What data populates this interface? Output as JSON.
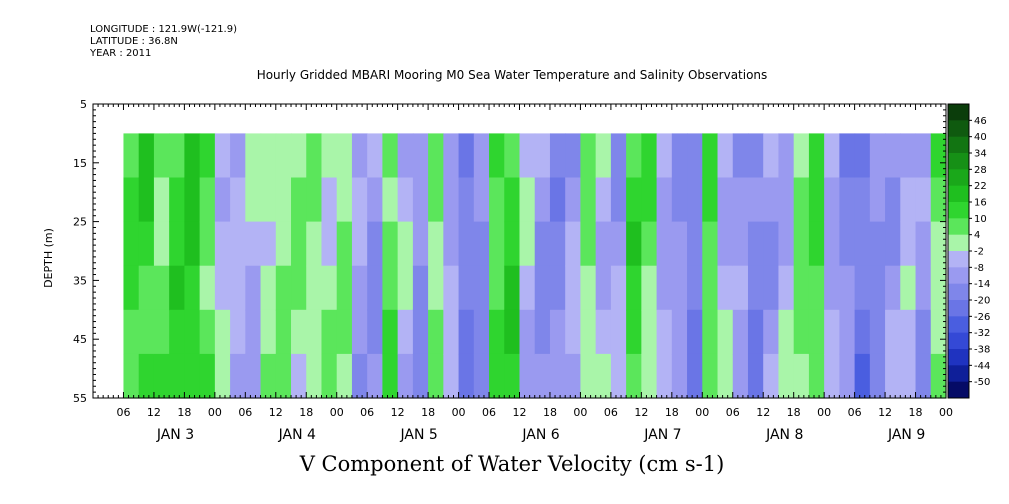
{
  "header": {
    "longitude": "LONGITUDE : 121.9W(-121.9)",
    "latitude": "LATITUDE : 36.8N",
    "year": "YEAR : 2011",
    "title": "Hourly Gridded MBARI Mooring M0 Sea Water Temperature and Salinity Observations",
    "variable": "V Component of Water Velocity (cm s-1)"
  },
  "chart_data": {
    "type": "heatmap",
    "title": "Hourly Gridded MBARI Mooring M0 Sea Water Temperature and Salinity Observations",
    "xlabel": "",
    "ylabel": "DEPTH (m)",
    "variable_label": "V Component of Water Velocity (cm s-1)",
    "y_axis": {
      "range": [
        5,
        55
      ],
      "inverted": true,
      "ticks": [
        5,
        15,
        25,
        35,
        45,
        55
      ]
    },
    "x_axis": {
      "range_hours": [
        0,
        168
      ],
      "hour_ticks": [
        "06",
        "12",
        "18",
        "00",
        "06",
        "12",
        "18",
        "00",
        "06",
        "12",
        "18",
        "00",
        "06",
        "12",
        "18",
        "00",
        "06",
        "12",
        "18",
        "00",
        "06",
        "12",
        "18",
        "00",
        "06",
        "12",
        "18",
        "00"
      ],
      "day_labels": [
        "JAN  3",
        "JAN  4",
        "JAN  5",
        "JAN  6",
        "JAN  7",
        "JAN  8",
        "JAN  9"
      ]
    },
    "data_extent": {
      "depth_min": 10,
      "depth_max": 55,
      "start": "JAN 3 06:00",
      "end": "JAN 9 ~02:00"
    },
    "colorbar": {
      "levels": [
        48,
        46,
        40,
        34,
        28,
        22,
        16,
        10,
        4,
        -2,
        -8,
        -14,
        -20,
        -26,
        -32,
        -38,
        -44,
        -50
      ],
      "labels": [
        "46",
        "40",
        "34",
        "28",
        "22",
        "16",
        "10",
        "4",
        "-2",
        "-8",
        "-14",
        "-20",
        "-26",
        "-32",
        "-38",
        "-44",
        "-50"
      ],
      "colors": [
        "#0b3d0b",
        "#0f5a0f",
        "#127512",
        "#169016",
        "#1aa81a",
        "#1fbf1f",
        "#2fd52f",
        "#5be65b",
        "#a9f5a9",
        "#b3b3f5",
        "#9a9af0",
        "#7f86ea",
        "#6a75e6",
        "#4a5ee0",
        "#3449d6",
        "#1f33c0",
        "#0f1f99",
        "#050b66"
      ]
    },
    "bands": [
      {
        "x": 6,
        "v": 10
      },
      {
        "x": 9,
        "v": 14
      },
      {
        "x": 12,
        "v": 6
      },
      {
        "x": 15,
        "v": 12
      },
      {
        "x": 18,
        "v": 16
      },
      {
        "x": 21,
        "v": 8
      },
      {
        "x": 24,
        "v": -4
      },
      {
        "x": 27,
        "v": -8
      },
      {
        "x": 30,
        "v": -6
      },
      {
        "x": 33,
        "v": 2
      },
      {
        "x": 36,
        "v": 3
      },
      {
        "x": 39,
        "v": 2
      },
      {
        "x": 42,
        "v": 3
      },
      {
        "x": 45,
        "v": 2
      },
      {
        "x": 48,
        "v": 4
      },
      {
        "x": 51,
        "v": -10
      },
      {
        "x": 54,
        "v": -12
      },
      {
        "x": 57,
        "v": 8
      },
      {
        "x": 60,
        "v": -6
      },
      {
        "x": 63,
        "v": -14
      },
      {
        "x": 66,
        "v": 6
      },
      {
        "x": 69,
        "v": -8
      },
      {
        "x": 72,
        "v": -20
      },
      {
        "x": 75,
        "v": -14
      },
      {
        "x": 78,
        "v": 10
      },
      {
        "x": 81,
        "v": 14
      },
      {
        "x": 84,
        "v": -6
      },
      {
        "x": 87,
        "v": -12
      },
      {
        "x": 90,
        "v": -16
      },
      {
        "x": 93,
        "v": -10
      },
      {
        "x": 96,
        "v": 4
      },
      {
        "x": 99,
        "v": -4
      },
      {
        "x": 102,
        "v": -10
      },
      {
        "x": 105,
        "v": 12
      },
      {
        "x": 108,
        "v": 6
      },
      {
        "x": 111,
        "v": -8
      },
      {
        "x": 114,
        "v": -14
      },
      {
        "x": 117,
        "v": -20
      },
      {
        "x": 120,
        "v": 10
      },
      {
        "x": 123,
        "v": -4
      },
      {
        "x": 126,
        "v": -12
      },
      {
        "x": 129,
        "v": -18
      },
      {
        "x": 132,
        "v": -10
      },
      {
        "x": 135,
        "v": -6
      },
      {
        "x": 138,
        "v": 4
      },
      {
        "x": 141,
        "v": 10
      },
      {
        "x": 144,
        "v": -8
      },
      {
        "x": 147,
        "v": -16
      },
      {
        "x": 150,
        "v": -22
      },
      {
        "x": 153,
        "v": -14
      },
      {
        "x": 156,
        "v": -10
      },
      {
        "x": 159,
        "v": -6
      },
      {
        "x": 162,
        "v": -12
      },
      {
        "x": 165,
        "v": 6
      }
    ]
  }
}
